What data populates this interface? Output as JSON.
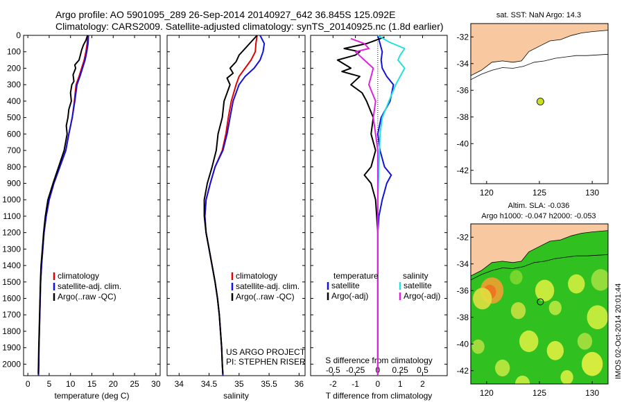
{
  "header": {
    "line1": "Argo profile: AO 5901095_289 26-Sep-2014 20140927_642 36.845S 125.092E",
    "line2": "Climatology: CARS2009. Satellite-adjusted climatology: synTS_20140925.nc (1.8d earlier)"
  },
  "colors": {
    "climatology": "#e00000",
    "satellite": "#1010e0",
    "argo": "#000000",
    "satellite_salinity": "#20e0e0",
    "argo_adj_salinity": "#e020e0",
    "land": "#f8c8a0"
  },
  "chart_data": [
    {
      "id": "temperature",
      "type": "line",
      "xlabel": "temperature (deg C)",
      "xlim": [
        -1,
        31
      ],
      "xticks": [
        0,
        5,
        10,
        15,
        20,
        25,
        30
      ],
      "ylim": [
        2070,
        0
      ],
      "yticks": [
        0,
        100,
        200,
        300,
        400,
        500,
        600,
        700,
        800,
        900,
        1000,
        1100,
        1200,
        1300,
        1400,
        1500,
        1600,
        1700,
        1800,
        1900,
        2000
      ],
      "legend": [
        "climatology",
        "satellite-adj. clim.",
        "Argo(..raw -QC)"
      ],
      "series": [
        {
          "name": "climatology",
          "color_key": "climatology",
          "points": [
            [
              14,
              0
            ],
            [
              13.9,
              50
            ],
            [
              13.6,
              100
            ],
            [
              13.2,
              150
            ],
            [
              12.6,
              200
            ],
            [
              12.0,
              250
            ],
            [
              11.3,
              300
            ],
            [
              10.9,
              400
            ],
            [
              10.4,
              500
            ],
            [
              9.6,
              600
            ],
            [
              8.9,
              700
            ],
            [
              7.5,
              800
            ],
            [
              6.1,
              900
            ],
            [
              5.0,
              1000
            ],
            [
              4.3,
              1100
            ],
            [
              3.8,
              1200
            ],
            [
              3.5,
              1300
            ],
            [
              3.2,
              1400
            ],
            [
              3.0,
              1500
            ],
            [
              2.9,
              1600
            ],
            [
              2.8,
              1700
            ],
            [
              2.7,
              1800
            ],
            [
              2.6,
              1900
            ],
            [
              2.55,
              2000
            ],
            [
              2.5,
              2070
            ]
          ]
        },
        {
          "name": "satellite-adj. clim.",
          "color_key": "satellite",
          "points": [
            [
              14.2,
              0
            ],
            [
              14.1,
              50
            ],
            [
              13.8,
              100
            ],
            [
              13.4,
              150
            ],
            [
              12.8,
              200
            ],
            [
              12.2,
              250
            ],
            [
              11.5,
              300
            ],
            [
              11.0,
              400
            ],
            [
              10.4,
              500
            ],
            [
              9.6,
              600
            ],
            [
              8.9,
              700
            ],
            [
              7.5,
              800
            ],
            [
              6.1,
              900
            ],
            [
              5.0,
              1000
            ],
            [
              4.3,
              1100
            ],
            [
              3.8,
              1200
            ],
            [
              3.5,
              1300
            ],
            [
              3.2,
              1400
            ],
            [
              3.0,
              1500
            ],
            [
              2.9,
              1600
            ],
            [
              2.8,
              1700
            ],
            [
              2.7,
              1800
            ],
            [
              2.6,
              1900
            ],
            [
              2.55,
              2000
            ],
            [
              2.5,
              2070
            ]
          ]
        },
        {
          "name": "Argo(..raw -QC)",
          "color_key": "argo",
          "points": [
            [
              14,
              0
            ],
            [
              13.6,
              30
            ],
            [
              13.0,
              60
            ],
            [
              12.6,
              90
            ],
            [
              12.3,
              120
            ],
            [
              12.0,
              150
            ],
            [
              11.0,
              180
            ],
            [
              11.2,
              200
            ],
            [
              10.6,
              240
            ],
            [
              10.8,
              280
            ],
            [
              10.3,
              300
            ],
            [
              10.0,
              350
            ],
            [
              10.2,
              400
            ],
            [
              9.6,
              450
            ],
            [
              9.4,
              500
            ],
            [
              9.0,
              550
            ],
            [
              9.2,
              600
            ],
            [
              8.5,
              700
            ],
            [
              7.2,
              800
            ],
            [
              5.9,
              900
            ],
            [
              4.7,
              1000
            ],
            [
              4.1,
              1100
            ],
            [
              3.7,
              1200
            ],
            [
              3.4,
              1300
            ],
            [
              3.1,
              1400
            ],
            [
              2.95,
              1500
            ],
            [
              2.85,
              1600
            ],
            [
              2.75,
              1700
            ],
            [
              2.65,
              1800
            ],
            [
              2.55,
              1900
            ],
            [
              2.5,
              2000
            ],
            [
              2.45,
              2060
            ]
          ]
        }
      ]
    },
    {
      "id": "salinity",
      "type": "line",
      "xlabel": "salinity",
      "xlim": [
        33.8,
        36.1
      ],
      "xticks": [
        34,
        34.5,
        35,
        35.5,
        36
      ],
      "ylim": [
        2070,
        0
      ],
      "legend": [
        "climatology",
        "satellite-adj. clim.",
        "Argo(..raw -QC)"
      ],
      "annotation": [
        "US ARGO PROJECT",
        "PI: STEPHEN RISER"
      ],
      "series": [
        {
          "name": "climatology",
          "color_key": "climatology",
          "points": [
            [
              35.3,
              0
            ],
            [
              35.28,
              50
            ],
            [
              35.27,
              100
            ],
            [
              35.2,
              150
            ],
            [
              35.1,
              200
            ],
            [
              35.0,
              250
            ],
            [
              34.95,
              300
            ],
            [
              34.87,
              400
            ],
            [
              34.82,
              500
            ],
            [
              34.78,
              600
            ],
            [
              34.72,
              700
            ],
            [
              34.6,
              800
            ],
            [
              34.52,
              900
            ],
            [
              34.45,
              1000
            ],
            [
              34.43,
              1100
            ],
            [
              34.45,
              1200
            ],
            [
              34.5,
              1300
            ],
            [
              34.55,
              1400
            ],
            [
              34.6,
              1500
            ],
            [
              34.64,
              1600
            ],
            [
              34.67,
              1700
            ],
            [
              34.69,
              1800
            ],
            [
              34.71,
              1900
            ],
            [
              34.72,
              2000
            ],
            [
              34.73,
              2070
            ]
          ]
        },
        {
          "name": "satellite-adj. clim.",
          "color_key": "satellite",
          "points": [
            [
              35.35,
              0
            ],
            [
              35.42,
              50
            ],
            [
              35.4,
              100
            ],
            [
              35.35,
              150
            ],
            [
              35.25,
              200
            ],
            [
              35.1,
              250
            ],
            [
              35.0,
              300
            ],
            [
              34.9,
              400
            ],
            [
              34.85,
              500
            ],
            [
              34.8,
              600
            ],
            [
              34.73,
              700
            ],
            [
              34.6,
              800
            ],
            [
              34.52,
              900
            ],
            [
              34.45,
              1000
            ],
            [
              34.43,
              1100
            ],
            [
              34.45,
              1200
            ],
            [
              34.5,
              1300
            ],
            [
              34.55,
              1400
            ],
            [
              34.6,
              1500
            ],
            [
              34.64,
              1600
            ],
            [
              34.67,
              1700
            ],
            [
              34.69,
              1800
            ],
            [
              34.71,
              1900
            ],
            [
              34.72,
              2000
            ],
            [
              34.73,
              2070
            ]
          ]
        },
        {
          "name": "Argo(..raw -QC)",
          "color_key": "argo",
          "points": [
            [
              35.3,
              0
            ],
            [
              35.2,
              40
            ],
            [
              35.1,
              80
            ],
            [
              35.0,
              120
            ],
            [
              34.95,
              160
            ],
            [
              34.85,
              200
            ],
            [
              34.9,
              230
            ],
            [
              34.8,
              260
            ],
            [
              34.85,
              300
            ],
            [
              34.75,
              400
            ],
            [
              34.72,
              500
            ],
            [
              34.65,
              600
            ],
            [
              34.62,
              700
            ],
            [
              34.55,
              800
            ],
            [
              34.47,
              900
            ],
            [
              34.42,
              1000
            ],
            [
              34.42,
              1100
            ],
            [
              34.45,
              1200
            ],
            [
              34.5,
              1300
            ],
            [
              34.55,
              1400
            ],
            [
              34.6,
              1500
            ],
            [
              34.64,
              1600
            ],
            [
              34.67,
              1700
            ],
            [
              34.69,
              1800
            ],
            [
              34.71,
              1900
            ],
            [
              34.72,
              2000
            ],
            [
              34.73,
              2060
            ]
          ]
        }
      ]
    },
    {
      "id": "differences",
      "type": "line",
      "xlabel": "T difference from climatology",
      "xlabel_top": "S difference from climatology",
      "xlim": [
        -3,
        3.1
      ],
      "xticks": [
        -2,
        -1,
        0,
        1,
        2
      ],
      "s_ticks_labels": [
        "-0.5",
        "-0.25",
        "0",
        "0.25",
        "0.5"
      ],
      "s_ticks_pos": [
        -2,
        -1,
        0,
        1,
        2
      ],
      "ylim": [
        2070,
        0
      ],
      "legend": {
        "temperature_title": "temperature",
        "salinity_title": "salinity",
        "satellite": "satellite",
        "argo_adj": "Argo(-adj)"
      },
      "series": [
        {
          "name": "satellite",
          "group": "temperature",
          "color_key": "satellite",
          "points": [
            [
              0,
              0
            ],
            [
              0.1,
              50
            ],
            [
              0.2,
              100
            ],
            [
              0.15,
              150
            ],
            [
              0.2,
              200
            ],
            [
              0.4,
              250
            ],
            [
              0.7,
              300
            ],
            [
              0.55,
              400
            ],
            [
              0.15,
              500
            ],
            [
              0.0,
              600
            ],
            [
              0.1,
              700
            ],
            [
              0.3,
              800
            ],
            [
              0.6,
              850
            ],
            [
              0.4,
              900
            ],
            [
              0.3,
              950
            ],
            [
              0.2,
              1000
            ],
            [
              0.05,
              1100
            ],
            [
              0,
              1200
            ],
            [
              0,
              2070
            ]
          ]
        },
        {
          "name": "Argo(-adj)",
          "group": "temperature",
          "color_key": "argo",
          "points": [
            [
              0.3,
              10
            ],
            [
              -0.5,
              50
            ],
            [
              -1.5,
              80
            ],
            [
              -0.8,
              100
            ],
            [
              -1.0,
              120
            ],
            [
              -1.8,
              150
            ],
            [
              -1.2,
              200
            ],
            [
              -1.6,
              220
            ],
            [
              -0.8,
              250
            ],
            [
              -1.2,
              300
            ],
            [
              -0.7,
              350
            ],
            [
              -0.5,
              400
            ],
            [
              -0.2,
              500
            ],
            [
              -0.3,
              600
            ],
            [
              -0.1,
              700
            ],
            [
              -0.3,
              800
            ],
            [
              -0.6,
              850
            ],
            [
              -0.3,
              900
            ],
            [
              -0.2,
              950
            ],
            [
              -0.1,
              1000
            ],
            [
              -0.05,
              1100
            ],
            [
              0,
              1200
            ],
            [
              0,
              2070
            ]
          ]
        },
        {
          "name": "satellite",
          "group": "salinity",
          "color_key": "satellite_salinity",
          "points": [
            [
              0,
              0
            ],
            [
              0.5,
              40
            ],
            [
              1.2,
              80
            ],
            [
              1.0,
              120
            ],
            [
              0.9,
              150
            ],
            [
              1.2,
              200
            ],
            [
              0.8,
              300
            ],
            [
              0.5,
              400
            ],
            [
              0.2,
              500
            ],
            [
              0.1,
              600
            ],
            [
              0.05,
              800
            ],
            [
              0.0,
              1000
            ],
            [
              0,
              2070
            ]
          ]
        },
        {
          "name": "Argo(-adj)",
          "group": "salinity",
          "color_key": "argo_adj_salinity",
          "points": [
            [
              -1.2,
              20
            ],
            [
              -0.6,
              50
            ],
            [
              -0.4,
              80
            ],
            [
              -1.0,
              100
            ],
            [
              -0.6,
              150
            ],
            [
              -0.2,
              200
            ],
            [
              -0.4,
              300
            ],
            [
              -0.1,
              400
            ],
            [
              -0.2,
              500
            ],
            [
              -0.1,
              600
            ],
            [
              0,
              700
            ],
            [
              0,
              2070
            ]
          ]
        }
      ]
    },
    {
      "id": "sst_map",
      "type": "scatter",
      "title": "sat. SST: NaN  Argo: 14.3",
      "xlim": [
        118.5,
        131.5
      ],
      "ylim": [
        -43,
        -31
      ],
      "xticks": [
        120,
        125,
        130
      ],
      "yticks": [
        -32,
        -34,
        -36,
        -38,
        -40,
        -42
      ],
      "marker": {
        "lon": 125.092,
        "lat": -36.845,
        "color": "#c8e020"
      }
    },
    {
      "id": "sla_map",
      "type": "heatmap",
      "title": "Altim. SLA: -0.036",
      "subtitle": "Argo h1000: -0.047  h2000: -0.053",
      "xlim": [
        118.5,
        131.5
      ],
      "ylim": [
        -43,
        -31
      ],
      "xticks": [
        120,
        125,
        130
      ],
      "yticks": [
        -32,
        -34,
        -36,
        -38,
        -40,
        -42
      ],
      "marker": {
        "lon": 125.092,
        "lat": -36.845
      },
      "side_label": "IMOS 02-Oct-2014 20:01:44"
    }
  ]
}
